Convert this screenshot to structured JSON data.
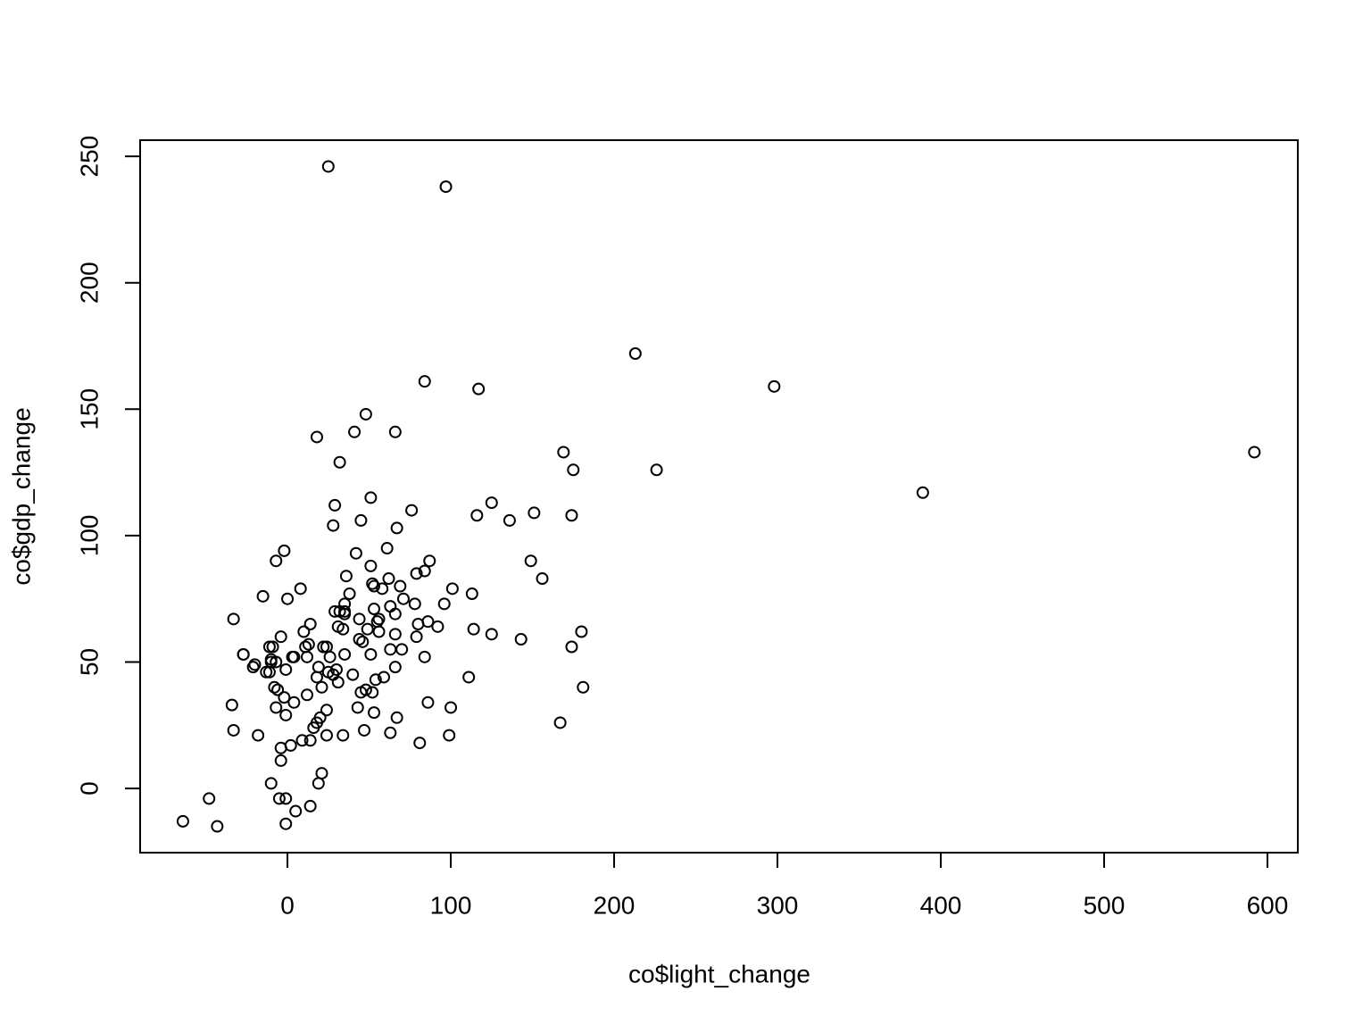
{
  "chart_data": {
    "type": "scatter",
    "xlabel": "co$light_change",
    "ylabel": "co$gdp_change",
    "color": "#000000",
    "x": [
      25,
      97,
      213,
      298,
      592,
      389,
      84,
      117,
      48,
      18,
      41,
      66,
      169,
      175,
      226,
      32,
      29,
      51,
      125,
      76,
      28,
      45,
      67,
      116,
      136,
      151,
      174,
      -2,
      -7,
      42,
      61,
      87,
      149,
      51,
      79,
      84,
      156,
      62,
      36,
      52,
      69,
      53,
      58,
      101,
      8,
      -15,
      0,
      38,
      113,
      71,
      78,
      96,
      35,
      63,
      53,
      35,
      29,
      32,
      35,
      66,
      -33,
      56,
      44,
      86,
      55,
      14,
      80,
      31,
      92,
      114,
      34,
      49,
      56,
      66,
      180,
      10,
      125,
      -4,
      79,
      44,
      143,
      46,
      11,
      13,
      174,
      -11,
      -9,
      22,
      24,
      63,
      70,
      51,
      -27,
      -27,
      35,
      26,
      12,
      84,
      3,
      4,
      -10,
      -7,
      -10,
      -20,
      -21,
      19,
      66,
      -1,
      30,
      -13,
      -11,
      25,
      40,
      28,
      18,
      59,
      111,
      31,
      54,
      21,
      -8,
      181,
      -6,
      48,
      45,
      52,
      12,
      -2,
      -34,
      4,
      86,
      43,
      -7,
      100,
      24,
      53,
      -1,
      67,
      167,
      18,
      20,
      16,
      47,
      -33,
      -18,
      24,
      34,
      63,
      99,
      9,
      14,
      81,
      -4,
      2,
      -4,
      21,
      19,
      -10,
      -48,
      -5,
      -1,
      14,
      5,
      -64,
      -1,
      -43
    ],
    "values": [
      246,
      238,
      172,
      159,
      133,
      117,
      161,
      158,
      148,
      139,
      141,
      141,
      133,
      126,
      126,
      129,
      112,
      115,
      113,
      110,
      104,
      106,
      103,
      108,
      106,
      109,
      108,
      94,
      90,
      93,
      95,
      90,
      90,
      88,
      85,
      86,
      83,
      83,
      84,
      81,
      80,
      80,
      79,
      79,
      79,
      76,
      75,
      77,
      77,
      75,
      73,
      73,
      73,
      72,
      71,
      70,
      70,
      70,
      69,
      69,
      67,
      67,
      67,
      66,
      66,
      65,
      65,
      64,
      64,
      63,
      63,
      63,
      62,
      61,
      62,
      62,
      61,
      60,
      60,
      59,
      59,
      58,
      56,
      57,
      56,
      56,
      56,
      56,
      56,
      55,
      55,
      53,
      53,
      53,
      53,
      52,
      52,
      52,
      52,
      52,
      51,
      50,
      50,
      49,
      48,
      48,
      48,
      47,
      47,
      46,
      46,
      46,
      45,
      45,
      44,
      44,
      44,
      42,
      43,
      40,
      40,
      40,
      39,
      39,
      38,
      38,
      37,
      36,
      33,
      34,
      34,
      32,
      32,
      32,
      31,
      30,
      29,
      28,
      26,
      26,
      28,
      24,
      23,
      23,
      21,
      21,
      21,
      22,
      21,
      19,
      19,
      18,
      16,
      17,
      11,
      6,
      2,
      2,
      -4,
      -4,
      -4,
      -7,
      -9,
      -13,
      -14,
      -15
    ],
    "xlim": [
      -90.2,
      618.6
    ],
    "ylim": [
      -25.4,
      256.4
    ],
    "xticks": [
      0,
      100,
      200,
      300,
      400,
      500,
      600
    ],
    "yticks": [
      0,
      50,
      100,
      150,
      200,
      250
    ]
  }
}
